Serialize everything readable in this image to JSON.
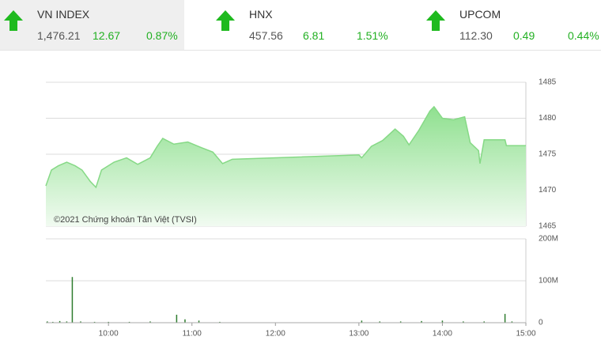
{
  "indices": [
    {
      "name": "VN INDEX",
      "value": "1,476.21",
      "change": "12.67",
      "percent": "0.87%"
    },
    {
      "name": "HNX",
      "value": "457.56",
      "change": "6.81",
      "percent": "1.51%"
    },
    {
      "name": "UPCOM",
      "value": "112.30",
      "change": "0.49",
      "percent": "0.44%"
    }
  ],
  "chart_data": [
    {
      "type": "area",
      "color": "#86d986",
      "annotation": "©2021 Chứng khoán Tân Việt (TVSI)",
      "x": [
        "09:15",
        "09:19",
        "09:24",
        "09:30",
        "09:36",
        "09:41",
        "09:47",
        "09:51",
        "09:55",
        "10:04",
        "10:13",
        "10:21",
        "10:30",
        "10:35",
        "10:39",
        "10:47",
        "10:57",
        "11:07",
        "11:15",
        "11:22",
        "11:29",
        "13:00",
        "13:02",
        "13:09",
        "13:17",
        "13:26",
        "13:32",
        "13:36",
        "13:43",
        "13:51",
        "13:54",
        "14:00",
        "14:08",
        "14:16",
        "14:20",
        "14:26",
        "14:27",
        "14:30",
        "14:45",
        "14:46",
        "15:00"
      ],
      "values": [
        1470.6,
        1472.8,
        1473.4,
        1473.9,
        1473.4,
        1472.8,
        1471.2,
        1470.4,
        1472.8,
        1473.9,
        1474.5,
        1473.6,
        1474.5,
        1476.1,
        1477.2,
        1476.4,
        1476.7,
        1475.9,
        1475.3,
        1473.7,
        1474.3,
        1474.9,
        1474.5,
        1476.1,
        1476.9,
        1478.5,
        1477.5,
        1476.3,
        1478.3,
        1481.0,
        1481.6,
        1480.0,
        1479.8,
        1480.2,
        1476.6,
        1475.5,
        1473.7,
        1477.0,
        1477.0,
        1476.2,
        1476.2
      ],
      "xlim": [
        "09:15",
        "15:00"
      ],
      "ylim": [
        1465,
        1485
      ],
      "yticks": [
        1465,
        1470,
        1475,
        1480,
        1485
      ],
      "grid": true
    },
    {
      "type": "bar",
      "color": "#2f7d2f",
      "x": [
        "09:16",
        "09:20",
        "09:25",
        "09:30",
        "09:34",
        "09:40",
        "09:50",
        "10:00",
        "10:15",
        "10:30",
        "10:49",
        "10:55",
        "11:05",
        "11:20",
        "13:02",
        "13:15",
        "13:30",
        "13:45",
        "14:00",
        "14:15",
        "14:30",
        "14:45",
        "14:50"
      ],
      "values": [
        3,
        2,
        4,
        3,
        109,
        3,
        2,
        2,
        2,
        3,
        19,
        8,
        5,
        2,
        5,
        3,
        3,
        4,
        5,
        3,
        3,
        21,
        3
      ],
      "xlim": [
        "09:15",
        "15:00"
      ],
      "xticks": [
        "10:00",
        "11:00",
        "12:00",
        "13:00",
        "14:00",
        "15:00"
      ],
      "ylim": [
        0,
        200
      ],
      "yticks": [
        0,
        {
          "value": 100,
          "label": "100M"
        },
        {
          "value": 200,
          "label": "200M"
        }
      ],
      "grid": true
    }
  ]
}
